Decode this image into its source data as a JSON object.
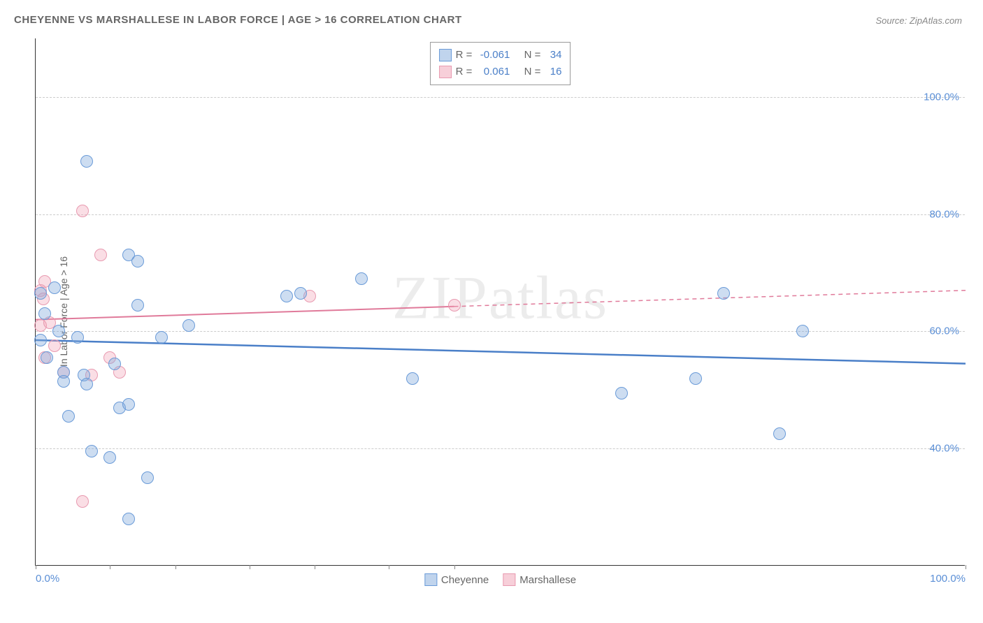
{
  "title": "CHEYENNE VS MARSHALLESE IN LABOR FORCE | AGE > 16 CORRELATION CHART",
  "source": "Source: ZipAtlas.com",
  "watermark": "ZIPatlas",
  "y_axis_label": "In Labor Force | Age > 16",
  "chart": {
    "type": "scatter",
    "xlim": [
      0,
      100
    ],
    "ylim": [
      20,
      110
    ],
    "x_ticks_major": [
      0,
      100
    ],
    "x_ticks_minor": [
      8,
      15,
      23,
      30,
      38,
      45
    ],
    "x_tick_labels": {
      "0": "0.0%",
      "100": "100.0%"
    },
    "y_gridlines": [
      40,
      60,
      80,
      100
    ],
    "y_tick_labels": {
      "40": "40.0%",
      "60": "60.0%",
      "80": "80.0%",
      "100": "100.0%"
    },
    "background_color": "#ffffff",
    "grid_color": "#cccccc",
    "axis_color": "#333333",
    "point_radius": 9,
    "colors": {
      "cheyenne_fill": "rgba(130,170,220,0.4)",
      "cheyenne_stroke": "#6a9bd8",
      "marshallese_fill": "rgba(240,160,180,0.35)",
      "marshallese_stroke": "#e89ab0",
      "trend_blue": "#4a7fc8",
      "trend_pink": "#e07a9a",
      "value_text": "#4a7fc8",
      "label_text": "#666666"
    },
    "series": {
      "cheyenne_points": [
        [
          5.5,
          89.0
        ],
        [
          0.5,
          66.5
        ],
        [
          1.0,
          63.0
        ],
        [
          0.5,
          58.5
        ],
        [
          1.2,
          55.5
        ],
        [
          2.0,
          67.5
        ],
        [
          2.5,
          60.0
        ],
        [
          3.0,
          53.0
        ],
        [
          3.0,
          51.5
        ],
        [
          3.5,
          45.5
        ],
        [
          4.5,
          59.0
        ],
        [
          5.2,
          52.5
        ],
        [
          5.5,
          51.0
        ],
        [
          6.0,
          39.5
        ],
        [
          8.0,
          38.5
        ],
        [
          8.5,
          54.5
        ],
        [
          9.0,
          47.0
        ],
        [
          10.0,
          47.5
        ],
        [
          10.0,
          73.0
        ],
        [
          10.0,
          28.0
        ],
        [
          11.0,
          72.0
        ],
        [
          11.0,
          64.5
        ],
        [
          12.0,
          35.0
        ],
        [
          13.5,
          59.0
        ],
        [
          16.5,
          61.0
        ],
        [
          27.0,
          66.0
        ],
        [
          28.5,
          66.5
        ],
        [
          35.0,
          69.0
        ],
        [
          40.5,
          52.0
        ],
        [
          63.0,
          49.5
        ],
        [
          71.0,
          52.0
        ],
        [
          74.0,
          66.5
        ],
        [
          82.5,
          60.0
        ],
        [
          80.0,
          42.5
        ]
      ],
      "marshallese_points": [
        [
          1.0,
          68.5
        ],
        [
          0.5,
          67.0
        ],
        [
          0.8,
          65.5
        ],
        [
          0.5,
          61.0
        ],
        [
          1.0,
          55.5
        ],
        [
          2.0,
          57.5
        ],
        [
          3.0,
          53.0
        ],
        [
          5.0,
          80.5
        ],
        [
          6.0,
          52.5
        ],
        [
          7.0,
          73.0
        ],
        [
          8.0,
          55.5
        ],
        [
          9.0,
          53.0
        ],
        [
          5.0,
          31.0
        ],
        [
          29.5,
          66.0
        ],
        [
          45.0,
          64.5
        ],
        [
          1.5,
          61.5
        ]
      ]
    },
    "trend_lines": {
      "blue": {
        "x1": 0,
        "y1": 58.5,
        "x2": 100,
        "y2": 54.5,
        "solid_until_x": 100
      },
      "pink": {
        "x1": 0,
        "y1": 62.0,
        "x2": 100,
        "y2": 67.0,
        "solid_until_x": 45
      }
    }
  },
  "legend_stats": {
    "rows": [
      {
        "swatch": "b",
        "r_label": "R =",
        "r": "-0.061",
        "n_label": "N =",
        "n": "34"
      },
      {
        "swatch": "p",
        "r_label": "R =",
        "r": "0.061",
        "n_label": "N =",
        "n": "16"
      }
    ]
  },
  "bottom_legend": {
    "items": [
      {
        "swatch": "b",
        "label": "Cheyenne"
      },
      {
        "swatch": "p",
        "label": "Marshallese"
      }
    ]
  }
}
